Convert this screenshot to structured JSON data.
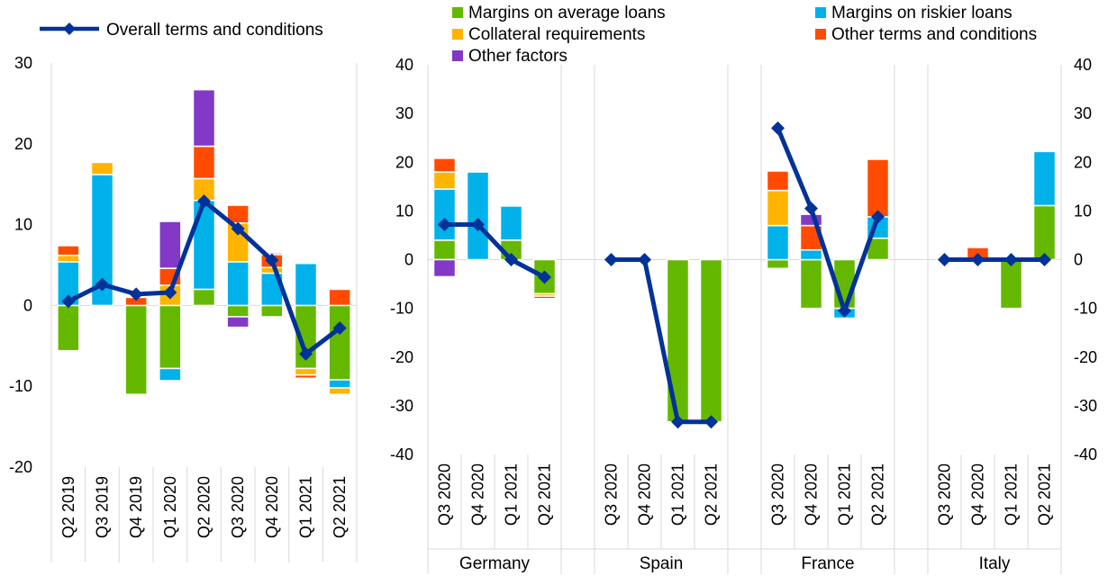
{
  "chart_data": [
    {
      "type": "bar",
      "stacked": true,
      "title": "",
      "xlabel": "",
      "ylabel": "",
      "ylim": [
        -20,
        30
      ],
      "yticks": [
        -20,
        -10,
        0,
        10,
        20,
        30
      ],
      "categories": [
        "Q2 2019",
        "Q3 2019",
        "Q4 2019",
        "Q1 2020",
        "Q2 2020",
        "Q3 2020",
        "Q4 2020",
        "Q1 2021",
        "Q2 2021"
      ],
      "legend": {
        "placement": "top",
        "entries": [
          "Overall terms and conditions"
        ]
      },
      "series": [
        {
          "name": "Margins on average loans",
          "kind": "bar",
          "color": "#65b800",
          "values": [
            -5.6,
            0,
            -11,
            -7.8,
            2,
            -1.4,
            -1.4,
            -7.8,
            -9.2
          ]
        },
        {
          "name": "Margins on riskier loans",
          "kind": "bar",
          "color": "#00b1ea",
          "values": [
            5.4,
            16.2,
            0,
            -1.5,
            11,
            5.4,
            4,
            5.2,
            -1
          ]
        },
        {
          "name": "Collateral requirements",
          "kind": "bar",
          "color": "#ffb400",
          "values": [
            0.8,
            1.5,
            0,
            2.5,
            2.7,
            4.8,
            0.7,
            -0.8,
            -0.8
          ]
        },
        {
          "name": "Other terms and conditions",
          "kind": "bar",
          "color": "#ff4b00",
          "values": [
            1.2,
            0,
            1,
            2.1,
            4,
            2.2,
            1.6,
            -0.4,
            2
          ]
        },
        {
          "name": "Other factors",
          "kind": "bar",
          "color": "#8139c6",
          "values": [
            0,
            0,
            0,
            5.8,
            7,
            -1.3,
            0.2,
            0,
            0
          ]
        },
        {
          "name": "Overall terms and conditions",
          "kind": "line",
          "color": "#003299",
          "values": [
            0.5,
            2.6,
            1.4,
            1.6,
            12.9,
            9.5,
            5.6,
            -6,
            -2.8
          ]
        }
      ]
    },
    {
      "type": "bar",
      "stacked": true,
      "title": "",
      "xlabel": "",
      "ylabel": "",
      "ylim": [
        -40,
        40
      ],
      "yticks": [
        -40,
        -30,
        -20,
        -10,
        0,
        10,
        20,
        30,
        40
      ],
      "secondary_y_axis": true,
      "groups": [
        "Germany",
        "Spain",
        "France",
        "Italy"
      ],
      "categories": [
        "Q3 2020",
        "Q4 2020",
        "Q1 2021",
        "Q2 2021"
      ],
      "legend": {
        "placement": "top",
        "entries": [
          "Margins on average loans",
          "Margins on riskier loans",
          "Collateral requirements",
          "Other terms and conditions",
          "Other factors"
        ]
      },
      "series": [
        {
          "name": "Margins on average loans",
          "kind": "bar",
          "color": "#65b800",
          "values": [
            [
              4,
              0,
              4,
              -7
            ],
            [
              0,
              0,
              -33.3,
              -33.3
            ],
            [
              -1.8,
              -10,
              -10,
              4.4
            ],
            [
              0,
              0,
              -10,
              11.1
            ]
          ]
        },
        {
          "name": "Margins on riskier loans",
          "kind": "bar",
          "color": "#00b1ea",
          "values": [
            [
              10.5,
              18,
              7,
              0
            ],
            [
              0,
              0,
              0,
              0
            ],
            [
              7,
              2,
              -2,
              4.4
            ],
            [
              0,
              0,
              0,
              11.1
            ]
          ]
        },
        {
          "name": "Collateral requirements",
          "kind": "bar",
          "color": "#ffb400",
          "values": [
            [
              3.5,
              0,
              0,
              -0.5
            ],
            [
              0,
              0,
              0,
              0
            ],
            [
              7.2,
              0,
              0,
              0
            ],
            [
              0,
              0,
              0,
              0
            ]
          ]
        },
        {
          "name": "Other terms and conditions",
          "kind": "bar",
          "color": "#ff4b00",
          "values": [
            [
              2.8,
              0,
              0,
              -0.5
            ],
            [
              0,
              0,
              0,
              0
            ],
            [
              4,
              5,
              0,
              11.8
            ],
            [
              0,
              2.5,
              0,
              0
            ]
          ]
        },
        {
          "name": "Other factors",
          "kind": "bar",
          "color": "#8139c6",
          "values": [
            [
              -3.5,
              0,
              0,
              0
            ],
            [
              0,
              0,
              0,
              0
            ],
            [
              0,
              2.3,
              0,
              0
            ],
            [
              0,
              0,
              0,
              0
            ]
          ]
        },
        {
          "name": "Overall terms and conditions",
          "kind": "line",
          "color": "#003299",
          "values": [
            [
              7.2,
              7.2,
              0,
              -3.6
            ],
            [
              0,
              0,
              -33.3,
              -33.3
            ],
            [
              27,
              10.5,
              -10.5,
              8.8
            ],
            [
              0,
              0,
              0,
              0
            ]
          ]
        }
      ]
    }
  ]
}
